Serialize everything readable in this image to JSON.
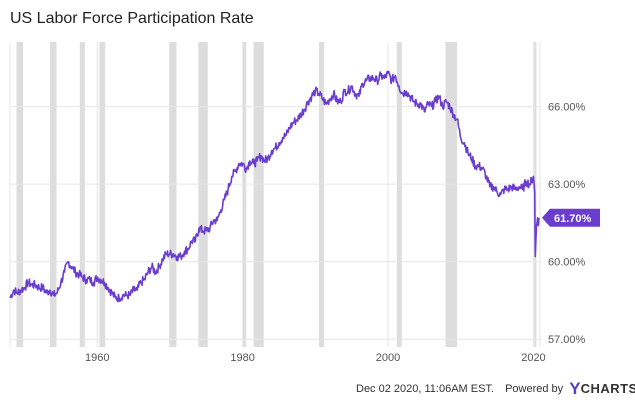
{
  "chart_data": {
    "type": "line",
    "title": "US Labor Force Participation Rate",
    "xlabel": "",
    "ylabel": "",
    "xlim": [
      1948,
      2020.9
    ],
    "ylim": [
      56.7,
      68.5
    ],
    "yticks": [
      {
        "value": 57,
        "label": "57.00%"
      },
      {
        "value": 60,
        "label": "60.00%"
      },
      {
        "value": 63,
        "label": "63.00%"
      },
      {
        "value": 66,
        "label": "66.00%"
      }
    ],
    "xticks": [
      {
        "value": 1960,
        "label": "1960"
      },
      {
        "value": 1980,
        "label": "1980"
      },
      {
        "value": 2000,
        "label": "2000"
      },
      {
        "value": 2020,
        "label": "2020"
      }
    ],
    "grid": true,
    "line_color": "#6a3dce",
    "recession_color": "#dddddd",
    "recessions": [
      [
        1948.9,
        1949.8
      ],
      [
        1953.5,
        1954.4
      ],
      [
        1957.6,
        1958.3
      ],
      [
        1960.3,
        1961.1
      ],
      [
        1969.9,
        1970.9
      ],
      [
        1973.9,
        1975.2
      ],
      [
        1980.0,
        1980.5
      ],
      [
        1981.5,
        1982.9
      ],
      [
        1990.5,
        1991.2
      ],
      [
        2001.2,
        2001.9
      ],
      [
        2007.9,
        2009.5
      ],
      [
        2020.1,
        2020.4
      ]
    ],
    "end_value_label": "61.70%",
    "end_value": 61.7,
    "series": [
      {
        "points": [
          [
            1948.0,
            58.6
          ],
          [
            1948.5,
            58.9
          ],
          [
            1949.0,
            58.8
          ],
          [
            1949.5,
            58.9
          ],
          [
            1950.0,
            59.0
          ],
          [
            1950.5,
            59.2
          ],
          [
            1951.0,
            59.1
          ],
          [
            1951.5,
            59.1
          ],
          [
            1952.0,
            59.0
          ],
          [
            1952.5,
            59.0
          ],
          [
            1953.0,
            58.8
          ],
          [
            1953.5,
            58.9
          ],
          [
            1954.0,
            58.7
          ],
          [
            1954.5,
            58.8
          ],
          [
            1955.0,
            59.2
          ],
          [
            1955.5,
            59.6
          ],
          [
            1956.0,
            60.0
          ],
          [
            1956.5,
            59.8
          ],
          [
            1957.0,
            59.6
          ],
          [
            1957.5,
            59.5
          ],
          [
            1958.0,
            59.4
          ],
          [
            1958.5,
            59.3
          ],
          [
            1959.0,
            59.3
          ],
          [
            1959.5,
            59.2
          ],
          [
            1960.0,
            59.4
          ],
          [
            1960.5,
            59.3
          ],
          [
            1961.0,
            59.2
          ],
          [
            1961.5,
            59.0
          ],
          [
            1962.0,
            58.8
          ],
          [
            1962.5,
            58.6
          ],
          [
            1963.0,
            58.6
          ],
          [
            1963.5,
            58.7
          ],
          [
            1964.0,
            58.7
          ],
          [
            1964.5,
            58.7
          ],
          [
            1965.0,
            58.9
          ],
          [
            1965.5,
            58.9
          ],
          [
            1966.0,
            59.2
          ],
          [
            1966.5,
            59.3
          ],
          [
            1967.0,
            59.6
          ],
          [
            1967.5,
            59.8
          ],
          [
            1968.0,
            59.6
          ],
          [
            1968.5,
            59.8
          ],
          [
            1969.0,
            60.1
          ],
          [
            1969.5,
            60.3
          ],
          [
            1970.0,
            60.3
          ],
          [
            1970.5,
            60.3
          ],
          [
            1971.0,
            60.2
          ],
          [
            1971.5,
            60.2
          ],
          [
            1972.0,
            60.4
          ],
          [
            1972.5,
            60.5
          ],
          [
            1973.0,
            60.8
          ],
          [
            1973.5,
            60.8
          ],
          [
            1974.0,
            61.3
          ],
          [
            1974.5,
            61.2
          ],
          [
            1975.0,
            61.2
          ],
          [
            1975.5,
            61.3
          ],
          [
            1976.0,
            61.6
          ],
          [
            1976.5,
            61.6
          ],
          [
            1977.0,
            62.0
          ],
          [
            1977.5,
            62.4
          ],
          [
            1978.0,
            62.8
          ],
          [
            1978.5,
            63.3
          ],
          [
            1979.0,
            63.5
          ],
          [
            1979.5,
            63.8
          ],
          [
            1980.0,
            63.8
          ],
          [
            1980.5,
            63.6
          ],
          [
            1981.0,
            63.9
          ],
          [
            1981.5,
            63.8
          ],
          [
            1982.0,
            63.9
          ],
          [
            1982.5,
            64.1
          ],
          [
            1983.0,
            63.9
          ],
          [
            1983.5,
            64.0
          ],
          [
            1984.0,
            64.3
          ],
          [
            1984.5,
            64.4
          ],
          [
            1985.0,
            64.6
          ],
          [
            1985.5,
            64.8
          ],
          [
            1986.0,
            64.9
          ],
          [
            1986.5,
            65.2
          ],
          [
            1987.0,
            65.4
          ],
          [
            1987.5,
            65.5
          ],
          [
            1988.0,
            65.7
          ],
          [
            1988.5,
            65.9
          ],
          [
            1989.0,
            66.2
          ],
          [
            1989.5,
            66.4
          ],
          [
            1990.0,
            66.6
          ],
          [
            1990.5,
            66.5
          ],
          [
            1991.0,
            66.3
          ],
          [
            1991.5,
            66.1
          ],
          [
            1992.0,
            66.3
          ],
          [
            1992.5,
            66.5
          ],
          [
            1993.0,
            66.2
          ],
          [
            1993.5,
            66.2
          ],
          [
            1994.0,
            66.6
          ],
          [
            1994.5,
            66.6
          ],
          [
            1995.0,
            66.8
          ],
          [
            1995.5,
            66.5
          ],
          [
            1996.0,
            66.4
          ],
          [
            1996.5,
            66.9
          ],
          [
            1997.0,
            67.0
          ],
          [
            1997.5,
            67.1
          ],
          [
            1998.0,
            67.1
          ],
          [
            1998.5,
            67.0
          ],
          [
            1999.0,
            67.2
          ],
          [
            1999.5,
            67.1
          ],
          [
            2000.0,
            67.3
          ],
          [
            2000.5,
            67.0
          ],
          [
            2001.0,
            67.2
          ],
          [
            2001.5,
            66.8
          ],
          [
            2002.0,
            66.5
          ],
          [
            2002.5,
            66.6
          ],
          [
            2003.0,
            66.4
          ],
          [
            2003.5,
            66.2
          ],
          [
            2004.0,
            66.1
          ],
          [
            2004.5,
            66.1
          ],
          [
            2005.0,
            65.8
          ],
          [
            2005.5,
            66.1
          ],
          [
            2006.0,
            66.0
          ],
          [
            2006.5,
            66.2
          ],
          [
            2007.0,
            66.4
          ],
          [
            2007.5,
            66.0
          ],
          [
            2008.0,
            66.2
          ],
          [
            2008.5,
            66.0
          ],
          [
            2009.0,
            65.7
          ],
          [
            2009.5,
            65.5
          ],
          [
            2010.0,
            64.8
          ],
          [
            2010.5,
            64.6
          ],
          [
            2011.0,
            64.2
          ],
          [
            2011.5,
            64.0
          ],
          [
            2012.0,
            63.7
          ],
          [
            2012.5,
            63.7
          ],
          [
            2013.0,
            63.6
          ],
          [
            2013.5,
            63.3
          ],
          [
            2014.0,
            62.9
          ],
          [
            2014.5,
            62.9
          ],
          [
            2015.0,
            62.7
          ],
          [
            2015.5,
            62.6
          ],
          [
            2016.0,
            62.8
          ],
          [
            2016.5,
            62.8
          ],
          [
            2017.0,
            62.9
          ],
          [
            2017.5,
            62.8
          ],
          [
            2018.0,
            62.9
          ],
          [
            2018.5,
            62.8
          ],
          [
            2019.0,
            63.1
          ],
          [
            2019.5,
            63.0
          ],
          [
            2020.0,
            63.3
          ],
          [
            2020.17,
            62.7
          ],
          [
            2020.25,
            60.2
          ],
          [
            2020.33,
            60.8
          ],
          [
            2020.42,
            61.4
          ],
          [
            2020.5,
            61.5
          ],
          [
            2020.58,
            61.7
          ],
          [
            2020.67,
            61.4
          ],
          [
            2020.75,
            61.7
          ]
        ]
      }
    ]
  },
  "footer": {
    "timestamp": "Dec 02 2020, 11:06AM EST.",
    "powered_by": "Powered by",
    "brand_y": "Y",
    "brand_rest": "CHARTS"
  },
  "colors": {
    "accent": "#6a3dce",
    "grid": "#e6e6e6",
    "recession": "#dddddd"
  }
}
